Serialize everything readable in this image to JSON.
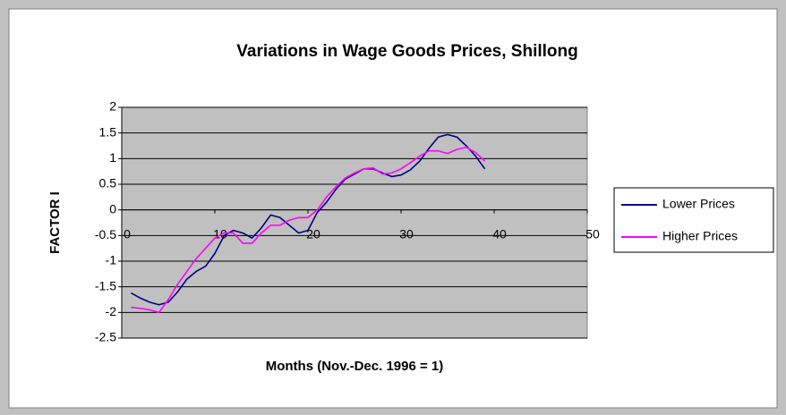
{
  "chart_data": {
    "type": "line",
    "title": "Variations in Wage Goods Prices, Shillong",
    "x_label": "Months (Nov.-Dec. 1996 = 1)",
    "y_label": "FACTOR I",
    "x": [
      1,
      2,
      3,
      4,
      5,
      6,
      7,
      8,
      9,
      10,
      11,
      12,
      13,
      14,
      15,
      16,
      17,
      18,
      19,
      20,
      21,
      22,
      23,
      24,
      25,
      26,
      27,
      28,
      29,
      30,
      31,
      32,
      33,
      34,
      35,
      36,
      37,
      38,
      39
    ],
    "series": [
      {
        "name": "Lower Prices",
        "color": "#000080",
        "values": [
          -1.62,
          -1.72,
          -1.8,
          -1.85,
          -1.8,
          -1.6,
          -1.35,
          -1.2,
          -1.1,
          -0.85,
          -0.5,
          -0.4,
          -0.45,
          -0.55,
          -0.35,
          -0.1,
          -0.15,
          -0.3,
          -0.45,
          -0.4,
          -0.05,
          0.15,
          0.4,
          0.6,
          0.7,
          0.8,
          0.8,
          0.72,
          0.65,
          0.68,
          0.78,
          0.95,
          1.2,
          1.42,
          1.47,
          1.42,
          1.25,
          1.05,
          0.8
        ]
      },
      {
        "name": "Higher Prices",
        "color": "#ff00ff",
        "values": [
          -1.9,
          -1.92,
          -1.95,
          -2.0,
          -1.75,
          -1.45,
          -1.2,
          -0.95,
          -0.75,
          -0.55,
          -0.45,
          -0.45,
          -0.65,
          -0.65,
          -0.45,
          -0.3,
          -0.3,
          -0.2,
          -0.15,
          -0.15,
          0.0,
          0.25,
          0.45,
          0.62,
          0.72,
          0.8,
          0.82,
          0.7,
          0.72,
          0.8,
          0.92,
          1.05,
          1.15,
          1.15,
          1.1,
          1.18,
          1.22,
          1.12,
          0.95
        ]
      }
    ],
    "xlim": [
      0,
      50
    ],
    "xticks": [
      0,
      10,
      20,
      30,
      40,
      50
    ],
    "ylim": [
      -2.5,
      2
    ],
    "yticks": [
      -2.5,
      -2,
      -1.5,
      -1,
      -0.5,
      0,
      0.5,
      1,
      1.5,
      2
    ],
    "grid": true,
    "plot_background": "#c0c0c0"
  }
}
